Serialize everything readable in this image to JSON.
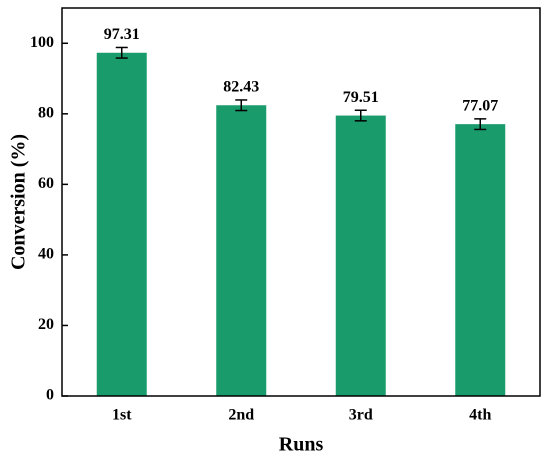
{
  "chart_data": {
    "type": "bar",
    "x_label": "Runs",
    "y_label": "Conversion (%)",
    "categories": [
      "1st",
      "2nd",
      "3rd",
      "4th"
    ],
    "values": [
      97.31,
      82.43,
      79.51,
      77.07
    ],
    "errors": [
      1.5,
      1.5,
      1.5,
      1.5
    ],
    "color": "#1a9b6c",
    "ylim": [
      0,
      110
    ],
    "yticks": [
      0,
      20,
      40,
      60,
      80,
      100
    ]
  }
}
